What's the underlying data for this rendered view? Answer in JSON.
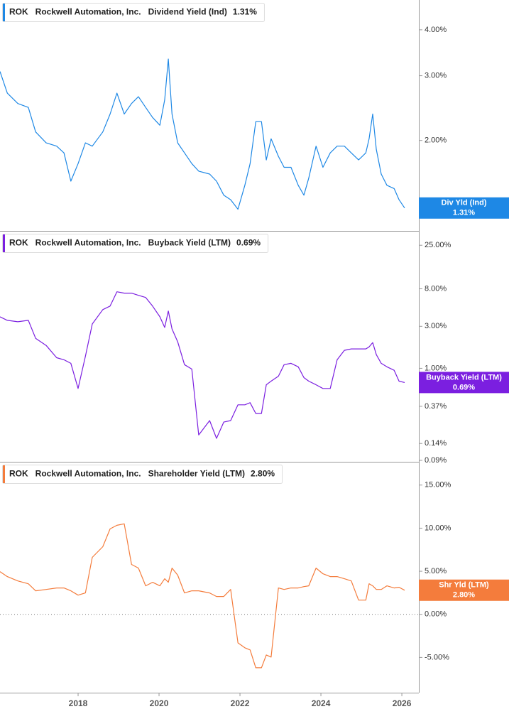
{
  "chart_data": [
    {
      "type": "line",
      "ticker": "ROK",
      "company": "Rockwell Automation, Inc.",
      "title": "Dividend Yield (Ind)",
      "current": {
        "value": 1.31,
        "label": "1.31%"
      },
      "badge": "Div Yld (Ind)",
      "log_scale": true,
      "xlim": [
        2016.07,
        2026.42
      ],
      "ylim": [
        1.135,
        4.82
      ],
      "yticks": [
        {
          "value": 2,
          "label": "2.00%"
        },
        {
          "value": 3,
          "label": "3.00%"
        },
        {
          "value": 4,
          "label": "4.00%"
        }
      ],
      "x": [
        2016.07,
        2016.25,
        2016.51,
        2016.77,
        2016.95,
        2017.21,
        2017.47,
        2017.65,
        2017.82,
        2018.0,
        2018.18,
        2018.35,
        2018.61,
        2018.79,
        2018.96,
        2019.14,
        2019.32,
        2019.49,
        2019.67,
        2019.84,
        2020.02,
        2020.14,
        2020.23,
        2020.32,
        2020.46,
        2020.63,
        2020.81,
        2020.98,
        2021.25,
        2021.42,
        2021.6,
        2021.77,
        2021.95,
        2022.12,
        2022.25,
        2022.39,
        2022.53,
        2022.65,
        2022.77,
        2022.95,
        2023.09,
        2023.26,
        2023.44,
        2023.58,
        2023.7,
        2023.88,
        2024.05,
        2024.23,
        2024.4,
        2024.58,
        2024.75,
        2024.93,
        2025.11,
        2025.19,
        2025.28,
        2025.37,
        2025.49,
        2025.63,
        2025.81,
        2025.93,
        2026.07
      ],
      "series": [
        {
          "name": "Dividend Yield (Ind)",
          "color": "#1e88e5",
          "values": [
            3.08,
            2.69,
            2.52,
            2.46,
            2.11,
            1.97,
            1.93,
            1.85,
            1.55,
            1.73,
            1.97,
            1.93,
            2.11,
            2.36,
            2.69,
            2.36,
            2.52,
            2.63,
            2.46,
            2.31,
            2.2,
            2.58,
            3.33,
            2.36,
            1.97,
            1.85,
            1.73,
            1.65,
            1.62,
            1.55,
            1.42,
            1.38,
            1.3,
            1.51,
            1.73,
            2.25,
            2.25,
            1.77,
            2.02,
            1.81,
            1.69,
            1.69,
            1.51,
            1.42,
            1.58,
            1.93,
            1.69,
            1.85,
            1.93,
            1.93,
            1.85,
            1.77,
            1.85,
            2.02,
            2.36,
            1.89,
            1.62,
            1.51,
            1.48,
            1.38,
            1.31
          ]
        }
      ]
    },
    {
      "type": "line",
      "ticker": "ROK",
      "company": "Rockwell Automation, Inc.",
      "title": "Buyback Yield (LTM)",
      "current": {
        "value": 0.69,
        "label": "0.69%"
      },
      "badge": "Buyback Yield (LTM)",
      "log_scale": true,
      "xlim": [
        2016.07,
        2026.42
      ],
      "ylim": [
        0.0867,
        36.4
      ],
      "yticks": [
        {
          "value": 0.09,
          "label": "0.09%"
        },
        {
          "value": 0.14,
          "label": "0.14%"
        },
        {
          "value": 0.37,
          "label": "0.37%"
        },
        {
          "value": 1,
          "label": "1.00%"
        },
        {
          "value": 3,
          "label": "3.00%"
        },
        {
          "value": 8,
          "label": "8.00%"
        },
        {
          "value": 25,
          "label": "25.00%"
        }
      ],
      "x": [
        2016.07,
        2016.25,
        2016.51,
        2016.77,
        2016.95,
        2017.21,
        2017.47,
        2017.65,
        2017.82,
        2018.0,
        2018.18,
        2018.35,
        2018.61,
        2018.79,
        2018.96,
        2019.14,
        2019.32,
        2019.49,
        2019.67,
        2019.84,
        2020.02,
        2020.14,
        2020.23,
        2020.32,
        2020.46,
        2020.63,
        2020.81,
        2020.98,
        2021.25,
        2021.42,
        2021.6,
        2021.77,
        2021.95,
        2022.12,
        2022.25,
        2022.39,
        2022.53,
        2022.65,
        2022.77,
        2022.95,
        2023.09,
        2023.26,
        2023.44,
        2023.58,
        2023.7,
        2023.88,
        2024.05,
        2024.23,
        2024.4,
        2024.58,
        2024.75,
        2024.93,
        2025.11,
        2025.19,
        2025.28,
        2025.37,
        2025.49,
        2025.63,
        2025.81,
        2025.93,
        2026.07
      ],
      "series": [
        {
          "name": "Buyback Yield (LTM)",
          "color": "#7b1fe0",
          "values": [
            3.85,
            3.51,
            3.38,
            3.51,
            2.19,
            1.82,
            1.32,
            1.25,
            1.14,
            0.59,
            1.37,
            3.19,
            4.64,
            5.1,
            7.41,
            7.14,
            7.14,
            6.75,
            6.38,
            5.1,
            3.85,
            2.91,
            4.47,
            2.8,
            2.0,
            1.1,
            0.98,
            0.175,
            0.255,
            0.16,
            0.245,
            0.255,
            0.385,
            0.385,
            0.407,
            0.307,
            0.307,
            0.65,
            0.714,
            0.814,
            1.1,
            1.14,
            1.04,
            0.784,
            0.714,
            0.65,
            0.59,
            0.59,
            1.25,
            1.6,
            1.66,
            1.66,
            1.66,
            1.75,
            1.96,
            1.43,
            1.14,
            1.04,
            0.95,
            0.714,
            0.69
          ]
        }
      ]
    },
    {
      "type": "line",
      "ticker": "ROK",
      "company": "Rockwell Automation, Inc.",
      "title": "Shareholder Yield (LTM)",
      "current": {
        "value": 2.8,
        "label": "2.80%"
      },
      "badge": "Shr Yld (LTM)",
      "log_scale": false,
      "zero_line": true,
      "xlim": [
        2016.07,
        2026.42
      ],
      "ylim": [
        -9.09,
        17.7
      ],
      "yticks": [
        {
          "value": -5,
          "label": "-5.00%"
        },
        {
          "value": 0,
          "label": "0.00%"
        },
        {
          "value": 5,
          "label": "5.00%"
        },
        {
          "value": 10,
          "label": "10.00%"
        },
        {
          "value": 15,
          "label": "15.00%"
        }
      ],
      "xticks": [
        2018,
        2020,
        2022,
        2024,
        2026
      ],
      "x": [
        2016.07,
        2016.25,
        2016.51,
        2016.77,
        2016.95,
        2017.21,
        2017.47,
        2017.65,
        2017.82,
        2018.0,
        2018.18,
        2018.35,
        2018.61,
        2018.79,
        2018.96,
        2019.14,
        2019.32,
        2019.49,
        2019.67,
        2019.84,
        2020.02,
        2020.14,
        2020.23,
        2020.32,
        2020.46,
        2020.63,
        2020.81,
        2020.98,
        2021.25,
        2021.42,
        2021.6,
        2021.77,
        2021.95,
        2022.12,
        2022.25,
        2022.39,
        2022.53,
        2022.65,
        2022.77,
        2022.95,
        2023.09,
        2023.26,
        2023.44,
        2023.58,
        2023.7,
        2023.88,
        2024.05,
        2024.23,
        2024.4,
        2024.58,
        2024.75,
        2024.93,
        2025.11,
        2025.19,
        2025.28,
        2025.37,
        2025.49,
        2025.63,
        2025.81,
        2025.93,
        2026.07
      ],
      "series": [
        {
          "name": "Shareholder Yield (LTM)",
          "color": "#f47c3c",
          "values": [
            4.96,
            4.38,
            3.88,
            3.55,
            2.73,
            2.89,
            3.06,
            3.06,
            2.73,
            2.23,
            2.48,
            6.61,
            7.85,
            9.92,
            10.33,
            10.5,
            5.79,
            5.37,
            3.31,
            3.72,
            3.31,
            4.13,
            3.72,
            5.37,
            4.55,
            2.48,
            2.73,
            2.73,
            2.48,
            2.07,
            2.07,
            2.89,
            -3.31,
            -3.88,
            -4.13,
            -6.2,
            -6.2,
            -4.71,
            -4.96,
            3.06,
            2.89,
            3.06,
            3.06,
            3.22,
            3.31,
            5.37,
            4.71,
            4.38,
            4.38,
            4.13,
            3.88,
            1.65,
            1.65,
            3.55,
            3.31,
            2.89,
            2.89,
            3.31,
            3.06,
            3.14,
            2.8
          ]
        }
      ]
    }
  ]
}
